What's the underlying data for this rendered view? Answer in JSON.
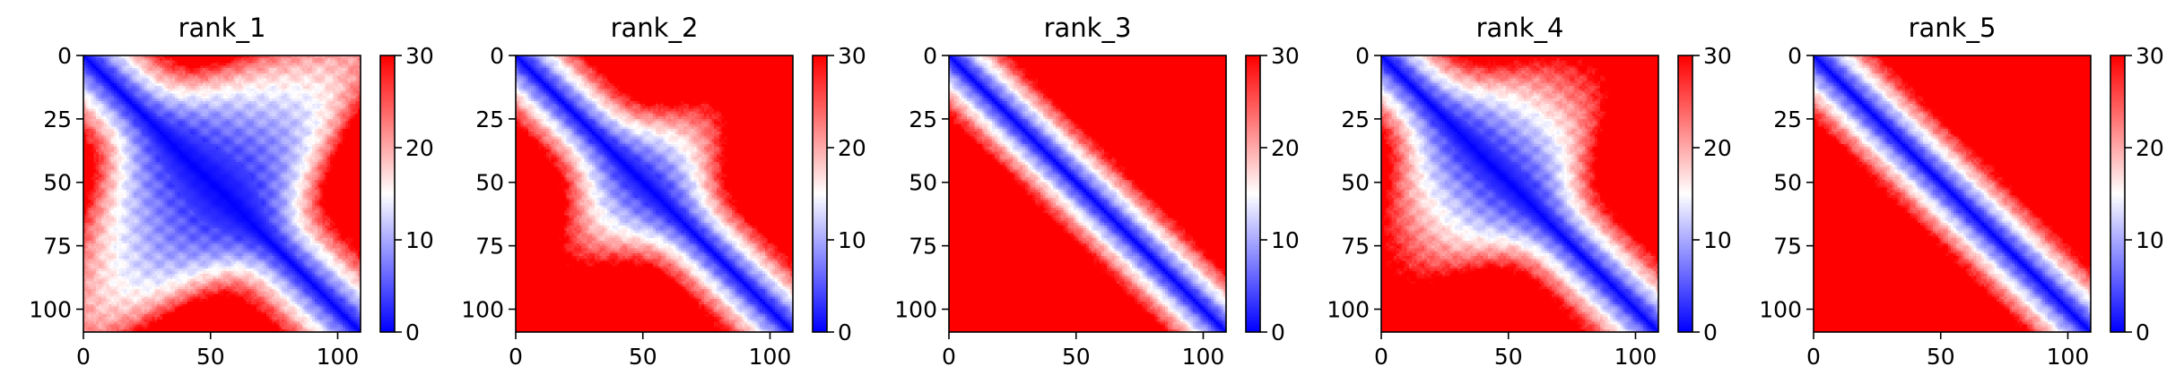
{
  "chart_data": [
    {
      "type": "heatmap",
      "title": "rank_1",
      "xlim": [
        0,
        109
      ],
      "ylim": [
        109,
        0
      ],
      "xticks": [
        0,
        50,
        100
      ],
      "yticks": [
        0,
        25,
        50,
        75,
        100
      ],
      "colorbar": {
        "range": [
          0,
          30
        ],
        "ticks": [
          0,
          10,
          20,
          30
        ],
        "colormap": [
          "#0000ff",
          "#ffffff",
          "#ff0000"
        ]
      },
      "band": {
        "width": 4.0,
        "blobs": [
          {
            "at": 55,
            "width": 13
          },
          {
            "at": 40,
            "width": 7
          }
        ]
      }
    },
    {
      "type": "heatmap",
      "title": "rank_2",
      "xlim": [
        0,
        109
      ],
      "ylim": [
        109,
        0
      ],
      "xticks": [
        0,
        50,
        100
      ],
      "yticks": [
        0,
        25,
        50,
        75,
        100
      ],
      "colorbar": {
        "range": [
          0,
          30
        ],
        "ticks": [
          0,
          10,
          20,
          30
        ],
        "colormap": [
          "#0000ff",
          "#ffffff",
          "#ff0000"
        ]
      },
      "band": {
        "width": 3.4,
        "blobs": [
          {
            "at": 50,
            "width": 4
          }
        ]
      }
    },
    {
      "type": "heatmap",
      "title": "rank_3",
      "xlim": [
        0,
        109
      ],
      "ylim": [
        109,
        0
      ],
      "xticks": [
        0,
        50,
        100
      ],
      "yticks": [
        0,
        25,
        50,
        75,
        100
      ],
      "colorbar": {
        "range": [
          0,
          30
        ],
        "ticks": [
          0,
          10,
          20,
          30
        ],
        "colormap": [
          "#0000ff",
          "#ffffff",
          "#ff0000"
        ]
      },
      "band": {
        "width": 3.0,
        "blobs": []
      }
    },
    {
      "type": "heatmap",
      "title": "rank_4",
      "xlim": [
        0,
        109
      ],
      "ylim": [
        109,
        0
      ],
      "xticks": [
        0,
        50,
        100
      ],
      "yticks": [
        0,
        25,
        50,
        75,
        100
      ],
      "colorbar": {
        "range": [
          0,
          30
        ],
        "ticks": [
          0,
          10,
          20,
          30
        ],
        "colormap": [
          "#0000ff",
          "#ffffff",
          "#ff0000"
        ]
      },
      "band": {
        "width": 3.6,
        "blobs": [
          {
            "at": 50,
            "width": 5
          },
          {
            "at": 35,
            "width": 4
          }
        ]
      }
    },
    {
      "type": "heatmap",
      "title": "rank_5",
      "xlim": [
        0,
        109
      ],
      "ylim": [
        109,
        0
      ],
      "xticks": [
        0,
        50,
        100
      ],
      "yticks": [
        0,
        25,
        50,
        75,
        100
      ],
      "colorbar": {
        "range": [
          0,
          30
        ],
        "ticks": [
          0,
          10,
          20,
          30
        ],
        "colormap": [
          "#0000ff",
          "#ffffff",
          "#ff0000"
        ]
      },
      "band": {
        "width": 3.2,
        "blobs": []
      }
    }
  ]
}
